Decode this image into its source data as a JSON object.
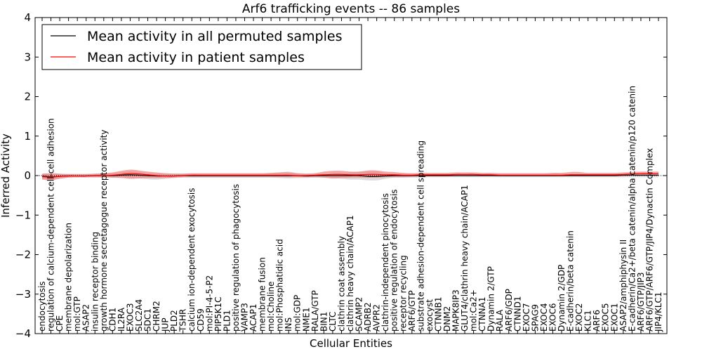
{
  "chart_data": {
    "type": "line",
    "title": "Arf6 trafficking events -- 86 samples",
    "xlabel": "Cellular Entities",
    "ylabel": "Inferred Activity",
    "ylim": [
      -4,
      4
    ],
    "yticks": [
      -4,
      -3,
      -2,
      -1,
      0,
      1,
      2,
      3,
      4
    ],
    "ytick_labels": [
      "−4",
      "−3",
      "−2",
      "−1",
      "0",
      "1",
      "2",
      "3",
      "4"
    ],
    "grid": false,
    "legend_position": "upper-left",
    "categories": [
      "endocytosis",
      "regulation of calcium-dependent cell-cell adhesion",
      "CPE",
      "membrane depolarization",
      "mol:GTP",
      "ASAP2",
      "insulin receptor binding",
      "growth hormone secretagogue receptor activity",
      "CDH1",
      "IL2RA",
      "EXOC3",
      "SLC2A4",
      "SDC1",
      "CHRM2",
      "JUP",
      "PLD2",
      "TSHR",
      "calcium ion-dependent exocytosis",
      "CD59",
      "mol:PI-4-5-P2",
      "PIP5K1C",
      "PLD1",
      "positive regulation of phagocytosis",
      "VAMP3",
      "ACAP1",
      "membrane fusion",
      "mol:Choline",
      "mol:Phosphatidic acid",
      "INS",
      "mol:GDP",
      "NME1",
      "RALA/GTP",
      "BIN1",
      "CLTC",
      "clathrin coat assembly",
      "clathrin heavy chain/ACAP1",
      "SCAMP2",
      "ADRB2",
      "AVPR2",
      "clathrin-independent pinocytosis",
      "positive regulation of endocytosis",
      "receptor recycling",
      "ARF6/GTP",
      "substrate adhesion-dependent cell spreading",
      "exocyst",
      "CTNNB1",
      "DNM2",
      "MAPK8IP3",
      "GLUT4/clathrin heavy chain/ACAP1",
      "mol:Ca2+",
      "CTNNA1",
      "Dynamin 2/GTP",
      "RALA",
      "ARF6/GDP",
      "CTNND1",
      "EXOC7",
      "SPAG9",
      "EXOC4",
      "EXOC6",
      "Dynamin 2/GDP",
      "E-cadherin/beta catenin",
      "EXOC2",
      "KLC1",
      "ARF6",
      "EXOC5",
      "EXOC1",
      "ASAP2/amphiphysin II",
      "E-cadherin/Ca2+/beta catenin/alpha catenin/p120 catenin",
      "ARF6/GTP/JIP3",
      "ARF6/GTP/ARF6/GTP/JIP4/Dynactin Complex",
      "JIP4/KLC1"
    ],
    "series": [
      {
        "name": "Mean activity in all permuted samples",
        "color": "#000000",
        "band_color": "#b0b0b0",
        "values": [
          -0.02,
          -0.03,
          -0.02,
          -0.01,
          -0.01,
          -0.01,
          0.0,
          0.0,
          0.0,
          0.01,
          0.02,
          0.01,
          0.0,
          -0.01,
          -0.01,
          -0.01,
          0.0,
          0.0,
          0.0,
          0.0,
          0.0,
          0.0,
          0.0,
          0.0,
          0.0,
          0.0,
          0.0,
          0.0,
          0.0,
          0.0,
          -0.01,
          0.0,
          0.0,
          0.0,
          0.0,
          0.0,
          0.0,
          -0.02,
          -0.02,
          -0.01,
          0.0,
          0.0,
          0.0,
          0.0,
          0.0,
          0.0,
          0.0,
          0.0,
          0.0,
          0.0,
          0.0,
          0.0,
          0.0,
          0.0,
          0.0,
          0.0,
          0.0,
          0.0,
          0.0,
          0.0,
          0.0,
          0.0,
          0.0,
          0.0,
          0.0,
          0.0,
          0.01,
          0.01,
          0.01,
          0.01,
          0.01
        ],
        "band_low": [
          -0.08,
          -0.09,
          -0.07,
          -0.05,
          -0.05,
          -0.05,
          -0.05,
          -0.05,
          -0.05,
          -0.05,
          -0.06,
          -0.07,
          -0.09,
          -0.1,
          -0.08,
          -0.06,
          -0.05,
          -0.05,
          -0.05,
          -0.05,
          -0.05,
          -0.05,
          -0.05,
          -0.05,
          -0.05,
          -0.05,
          -0.05,
          -0.06,
          -0.07,
          -0.06,
          -0.06,
          -0.05,
          -0.05,
          -0.06,
          -0.08,
          -0.1,
          -0.1,
          -0.12,
          -0.12,
          -0.08,
          -0.05,
          -0.05,
          -0.05,
          -0.05,
          -0.04,
          -0.04,
          -0.04,
          -0.04,
          -0.04,
          -0.04,
          -0.04,
          -0.04,
          -0.04,
          -0.04,
          -0.04,
          -0.04,
          -0.04,
          -0.04,
          -0.04,
          -0.04,
          -0.04,
          -0.04,
          -0.04,
          -0.04,
          -0.04,
          -0.04,
          -0.04,
          -0.04,
          -0.04,
          -0.04,
          -0.04
        ],
        "band_high": [
          0.04,
          0.05,
          0.04,
          0.04,
          0.04,
          0.04,
          0.05,
          0.05,
          0.06,
          0.08,
          0.1,
          0.08,
          0.06,
          0.05,
          0.05,
          0.05,
          0.05,
          0.05,
          0.05,
          0.05,
          0.05,
          0.05,
          0.05,
          0.05,
          0.05,
          0.05,
          0.06,
          0.08,
          0.1,
          0.06,
          0.05,
          0.05,
          0.05,
          0.05,
          0.06,
          0.08,
          0.1,
          0.1,
          0.1,
          0.06,
          0.05,
          0.05,
          0.05,
          0.05,
          0.05,
          0.05,
          0.05,
          0.05,
          0.05,
          0.05,
          0.05,
          0.05,
          0.05,
          0.05,
          0.05,
          0.05,
          0.05,
          0.05,
          0.05,
          0.05,
          0.05,
          0.05,
          0.05,
          0.05,
          0.05,
          0.05,
          0.05,
          0.05,
          0.05,
          0.05,
          0.05
        ]
      },
      {
        "name": "Mean activity in patient samples",
        "color": "#ff0000",
        "band_color": "#f08080",
        "values": [
          -0.03,
          -0.04,
          -0.02,
          -0.01,
          -0.01,
          -0.01,
          0.0,
          0.0,
          0.01,
          0.03,
          0.05,
          0.04,
          0.02,
          0.0,
          -0.01,
          -0.01,
          0.0,
          0.01,
          0.01,
          0.01,
          0.01,
          0.01,
          0.01,
          0.01,
          0.01,
          0.01,
          0.01,
          0.01,
          0.01,
          0.0,
          0.0,
          0.01,
          0.02,
          0.03,
          0.03,
          0.02,
          0.02,
          0.03,
          0.03,
          0.02,
          0.02,
          0.01,
          0.01,
          0.02,
          0.02,
          0.02,
          0.02,
          0.03,
          0.03,
          0.03,
          0.02,
          0.02,
          0.01,
          0.01,
          0.01,
          0.01,
          0.01,
          0.01,
          0.01,
          0.01,
          0.02,
          0.02,
          0.02,
          0.02,
          0.02,
          0.02,
          0.03,
          0.04,
          0.05,
          0.05,
          0.05
        ],
        "band_low": [
          -0.1,
          -0.12,
          -0.08,
          -0.05,
          -0.04,
          -0.04,
          -0.04,
          -0.04,
          -0.05,
          -0.06,
          -0.08,
          -0.07,
          -0.06,
          -0.06,
          -0.06,
          -0.05,
          -0.04,
          -0.04,
          -0.04,
          -0.04,
          -0.04,
          -0.04,
          -0.04,
          -0.04,
          -0.04,
          -0.04,
          -0.04,
          -0.04,
          -0.04,
          -0.04,
          -0.04,
          -0.04,
          -0.05,
          -0.07,
          -0.06,
          -0.05,
          -0.05,
          -0.05,
          -0.05,
          -0.04,
          -0.04,
          -0.04,
          -0.03,
          -0.02,
          -0.02,
          -0.02,
          -0.02,
          -0.01,
          -0.01,
          -0.01,
          -0.01,
          -0.01,
          -0.02,
          -0.02,
          -0.02,
          -0.02,
          -0.02,
          -0.02,
          -0.02,
          -0.02,
          -0.01,
          -0.01,
          -0.01,
          -0.01,
          -0.01,
          -0.01,
          -0.01,
          0.0,
          0.0,
          0.0,
          0.0
        ],
        "band_high": [
          0.05,
          0.06,
          0.05,
          0.04,
          0.04,
          0.04,
          0.05,
          0.06,
          0.08,
          0.12,
          0.15,
          0.13,
          0.1,
          0.08,
          0.06,
          0.05,
          0.05,
          0.06,
          0.06,
          0.06,
          0.06,
          0.06,
          0.06,
          0.06,
          0.06,
          0.06,
          0.07,
          0.08,
          0.08,
          0.06,
          0.05,
          0.06,
          0.1,
          0.12,
          0.12,
          0.1,
          0.1,
          0.13,
          0.13,
          0.1,
          0.09,
          0.07,
          0.06,
          0.07,
          0.07,
          0.07,
          0.07,
          0.08,
          0.08,
          0.08,
          0.07,
          0.07,
          0.06,
          0.06,
          0.06,
          0.06,
          0.06,
          0.06,
          0.07,
          0.07,
          0.09,
          0.09,
          0.07,
          0.07,
          0.07,
          0.07,
          0.08,
          0.09,
          0.1,
          0.1,
          0.1
        ]
      }
    ]
  }
}
